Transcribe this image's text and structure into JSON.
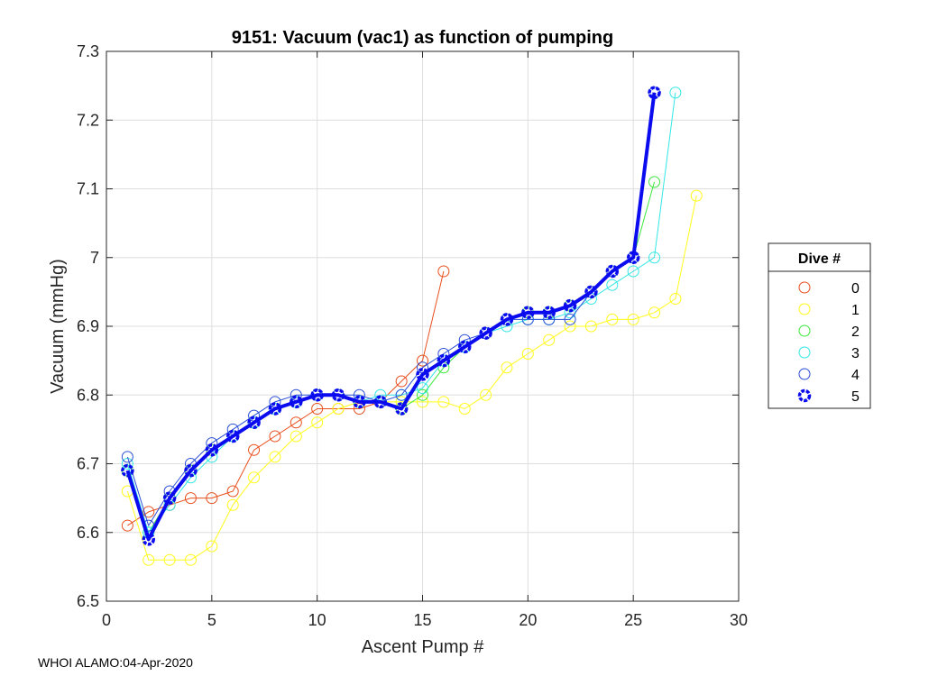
{
  "footer": "WHOI ALAMO:04-Apr-2020",
  "chart_data": {
    "type": "line",
    "title": "9151: Vacuum (vac1) as function of pumping",
    "xlabel": "Ascent Pump #",
    "ylabel": "Vacuum (mmHg)",
    "xlim": [
      0,
      30
    ],
    "ylim": [
      6.5,
      7.3
    ],
    "xticks": [
      0,
      5,
      10,
      15,
      20,
      25,
      30
    ],
    "yticks": [
      6.5,
      6.6,
      6.7,
      6.8,
      6.9,
      7,
      7.1,
      7.2,
      7.3
    ],
    "xtick_labels": [
      "0",
      "5",
      "10",
      "15",
      "20",
      "25",
      "30"
    ],
    "ytick_labels": [
      "6.5",
      "6.6",
      "6.7",
      "6.8",
      "6.9",
      "7",
      "7.1",
      "7.2",
      "7.3"
    ],
    "grid": true,
    "legend_title": "Dive #",
    "legend_position": "outside-right",
    "series": [
      {
        "name": "0",
        "color": "#e8501e",
        "x": [
          1,
          2,
          3,
          4,
          5,
          6,
          7,
          8,
          9,
          10,
          11,
          12,
          13,
          14,
          15,
          16
        ],
        "y": [
          6.61,
          6.63,
          6.64,
          6.65,
          6.65,
          6.66,
          6.72,
          6.74,
          6.76,
          6.78,
          6.78,
          6.78,
          6.79,
          6.82,
          6.85,
          6.98
        ]
      },
      {
        "name": "1",
        "color": "#ffff1a",
        "x": [
          1,
          2,
          3,
          4,
          5,
          6,
          7,
          8,
          9,
          10,
          11,
          12,
          13,
          14,
          15,
          16,
          17,
          18,
          19,
          20,
          21,
          22,
          23,
          24,
          25,
          26,
          27,
          28
        ],
        "y": [
          6.66,
          6.56,
          6.56,
          6.56,
          6.58,
          6.64,
          6.68,
          6.71,
          6.74,
          6.76,
          6.78,
          6.79,
          6.79,
          6.79,
          6.79,
          6.79,
          6.78,
          6.8,
          6.84,
          6.86,
          6.88,
          6.9,
          6.9,
          6.91,
          6.91,
          6.92,
          6.94,
          7.09
        ]
      },
      {
        "name": "2",
        "color": "#3ee63e",
        "x": [
          1,
          2,
          3,
          4,
          5,
          6,
          7,
          8,
          9,
          10,
          11,
          12,
          13,
          14,
          15,
          16,
          17,
          18,
          19,
          20,
          21,
          22,
          23,
          24,
          25,
          26
        ],
        "y": [
          6.69,
          6.6,
          6.65,
          6.69,
          6.72,
          6.74,
          6.76,
          6.78,
          6.79,
          6.8,
          6.8,
          6.79,
          6.79,
          6.78,
          6.8,
          6.84,
          6.87,
          6.89,
          6.91,
          6.92,
          6.92,
          6.93,
          6.95,
          6.98,
          7.0,
          7.11
        ]
      },
      {
        "name": "3",
        "color": "#33e6e6",
        "x": [
          1,
          2,
          3,
          4,
          5,
          6,
          7,
          8,
          9,
          10,
          11,
          12,
          13,
          14,
          15,
          16,
          17,
          18,
          19,
          20,
          21,
          22,
          23,
          24,
          25,
          26,
          27
        ],
        "y": [
          6.7,
          6.6,
          6.64,
          6.68,
          6.71,
          6.74,
          6.76,
          6.78,
          6.79,
          6.8,
          6.8,
          6.79,
          6.8,
          6.8,
          6.81,
          6.85,
          6.87,
          6.89,
          6.9,
          6.91,
          6.91,
          6.92,
          6.94,
          6.96,
          6.98,
          7.0,
          7.24
        ]
      },
      {
        "name": "4",
        "color": "#2a4fd6",
        "x": [
          1,
          2,
          3,
          4,
          5,
          6,
          7,
          8,
          9,
          10,
          11,
          12,
          13,
          14,
          15,
          16,
          17,
          18,
          19,
          20,
          21,
          22,
          23,
          24,
          25,
          26
        ],
        "y": [
          6.71,
          6.61,
          6.66,
          6.7,
          6.73,
          6.75,
          6.77,
          6.79,
          6.8,
          6.8,
          6.8,
          6.8,
          6.79,
          6.8,
          6.84,
          6.86,
          6.88,
          6.89,
          6.91,
          6.91,
          6.91,
          6.91,
          6.95,
          6.98,
          7.0,
          7.24
        ]
      },
      {
        "name": "5",
        "color": "#0b0bf0",
        "bold": true,
        "x": [
          1,
          2,
          3,
          4,
          5,
          6,
          7,
          8,
          9,
          10,
          11,
          12,
          13,
          14,
          15,
          16,
          17,
          18,
          19,
          20,
          21,
          22,
          23,
          24,
          25,
          26
        ],
        "y": [
          6.69,
          6.59,
          6.65,
          6.69,
          6.72,
          6.74,
          6.76,
          6.78,
          6.79,
          6.8,
          6.8,
          6.79,
          6.79,
          6.78,
          6.83,
          6.85,
          6.87,
          6.89,
          6.91,
          6.92,
          6.92,
          6.93,
          6.95,
          6.98,
          7.0,
          7.24
        ]
      }
    ]
  }
}
